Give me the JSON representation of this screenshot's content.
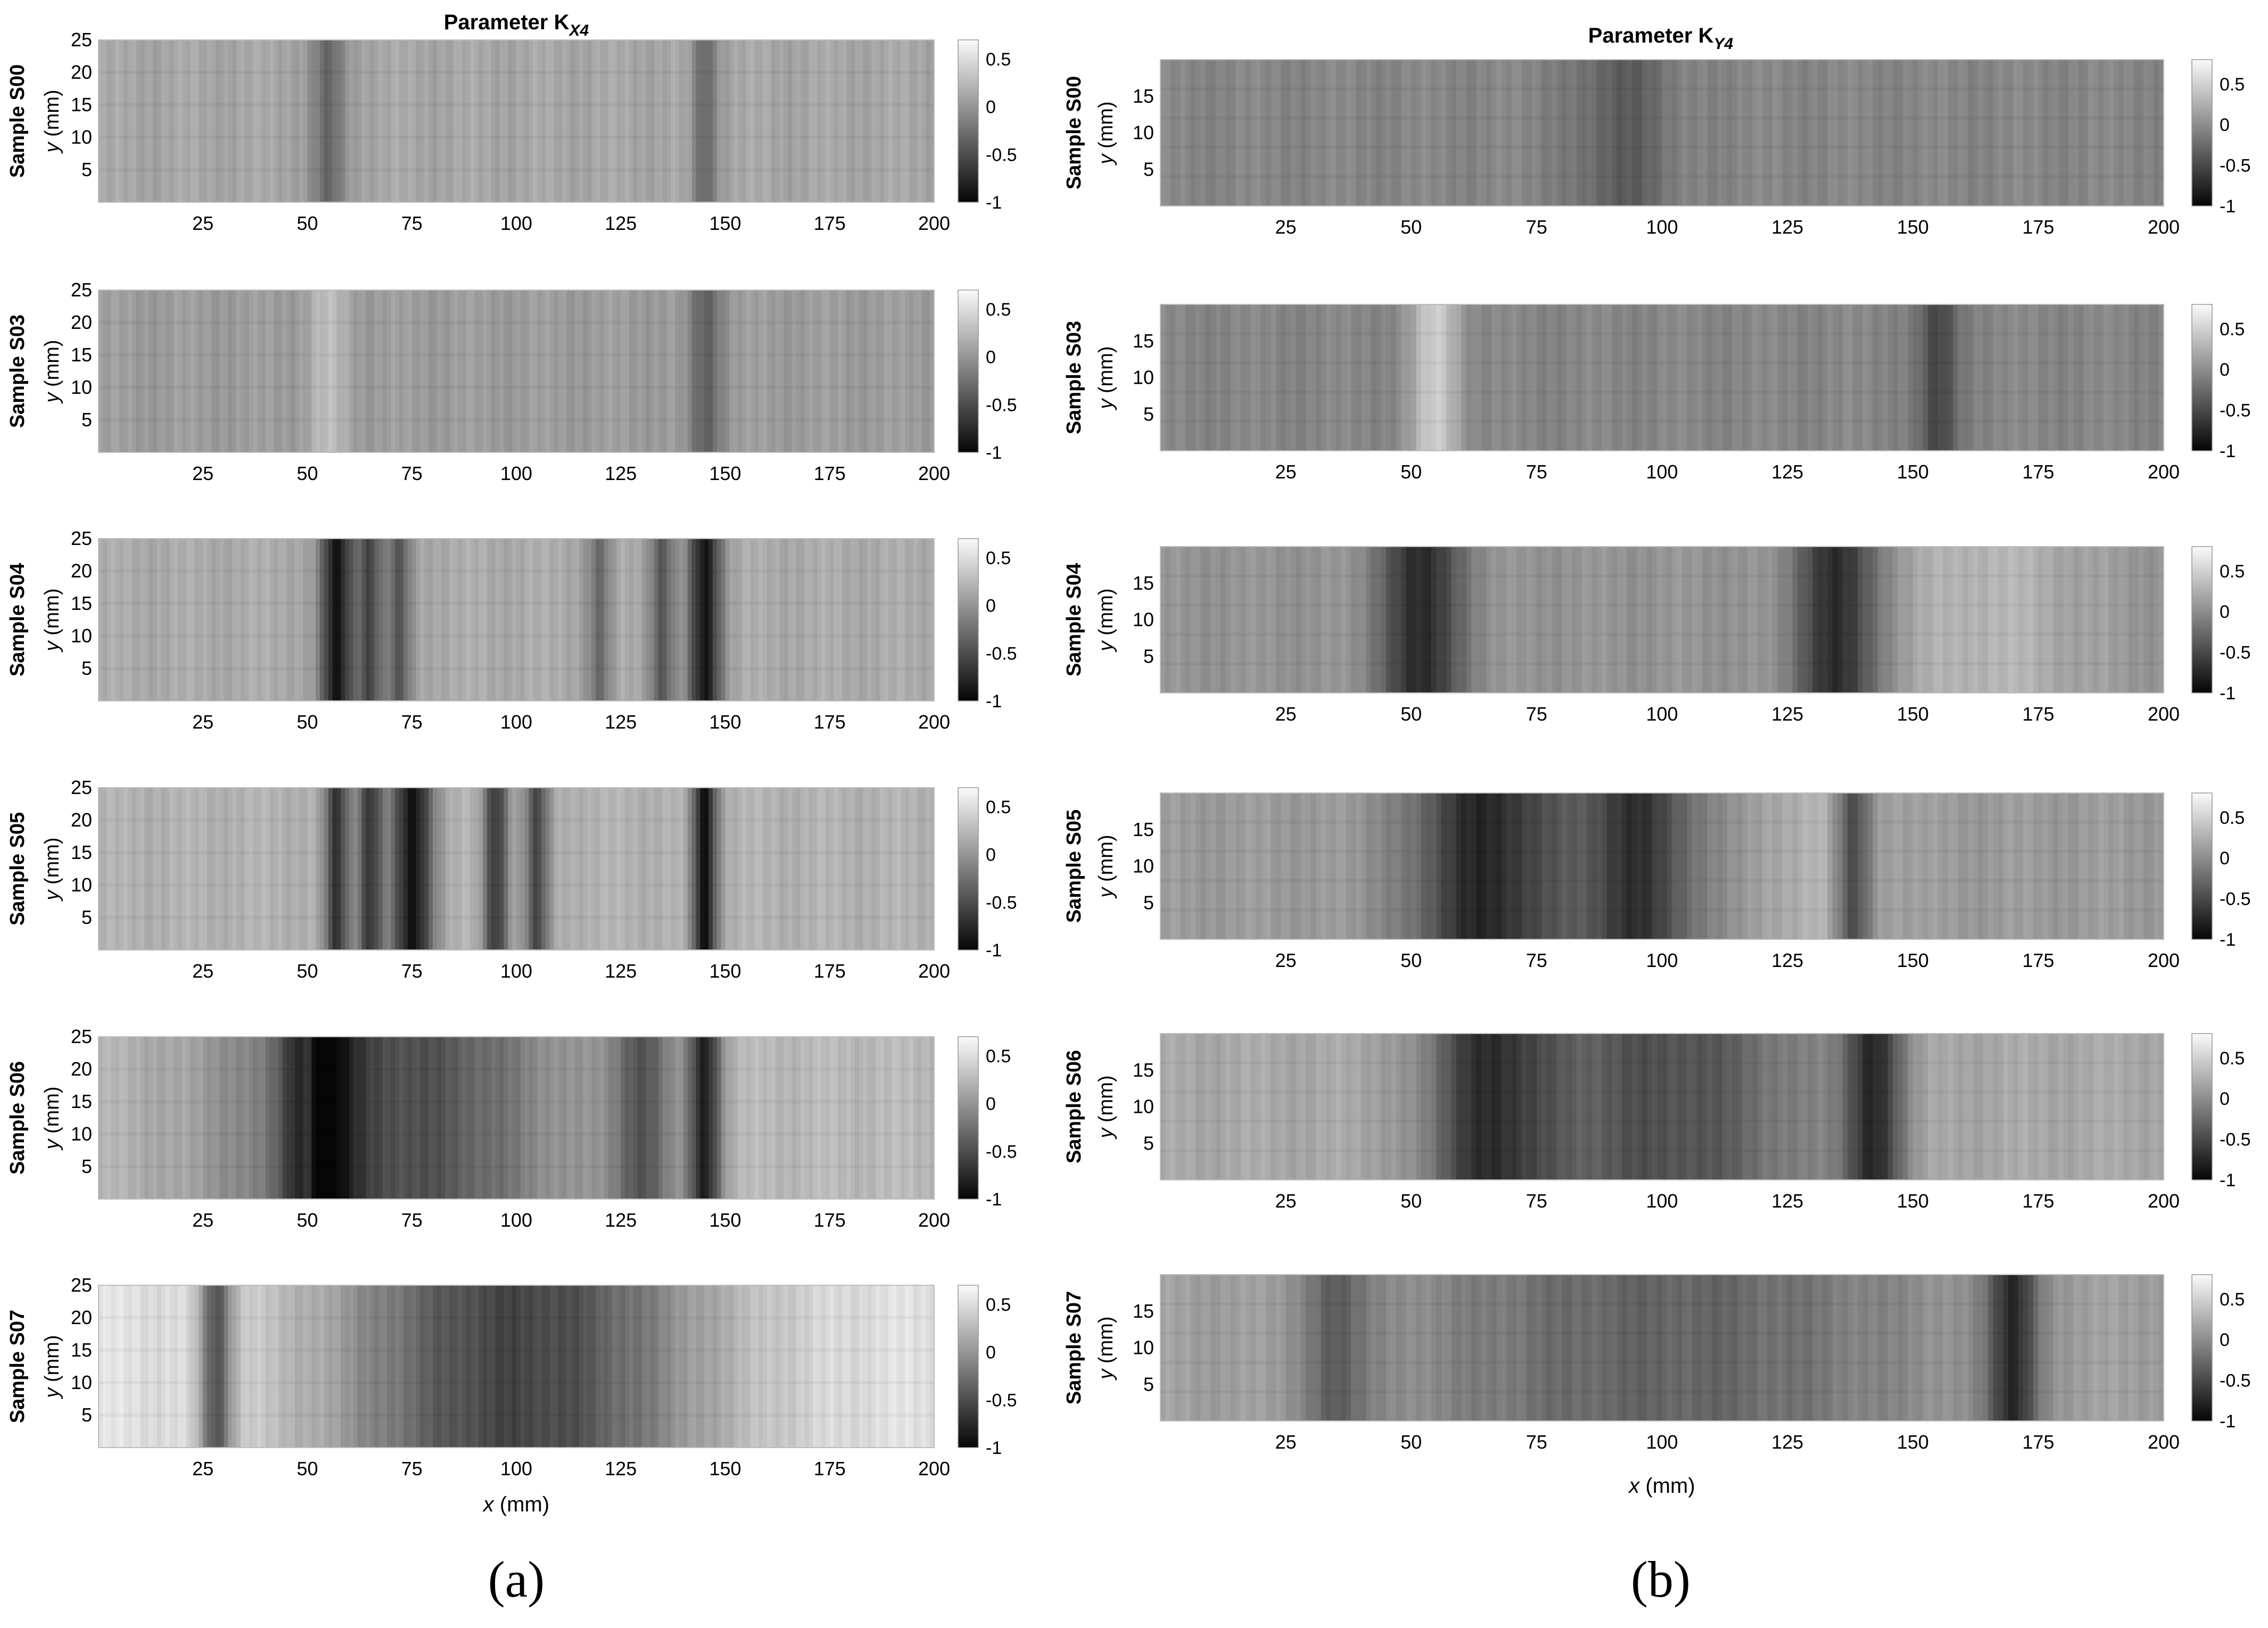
{
  "figure": {
    "subfigure_labels": [
      "(a)",
      "(b)"
    ]
  },
  "chart_data": [
    {
      "type": "heatmap",
      "panel": "a",
      "title": "Parameter K_X4",
      "title_main": "Parameter K",
      "title_sub": "X4",
      "xlabel": "x (mm)",
      "ylabel": "y (mm)",
      "xlim": [
        0,
        200
      ],
      "ylim": [
        0,
        25
      ],
      "x_ticks": [
        25,
        50,
        75,
        100,
        125,
        150,
        175,
        200
      ],
      "y_ticks": [
        5,
        10,
        15,
        20,
        25
      ],
      "colorbar": {
        "ticks": [
          0.5,
          0,
          -0.5,
          -1
        ],
        "tick_labels": [
          "0.5",
          "0",
          "-0.5",
          "-1"
        ],
        "range": [
          -1,
          0.7
        ],
        "colormap": "gray"
      },
      "samples": [
        {
          "name": "Sample S00",
          "base": 0.12,
          "features": [
            {
              "x": 55,
              "width": 4,
              "value": -0.35
            },
            {
              "x": 145,
              "width": 3,
              "value": -0.3
            }
          ]
        },
        {
          "name": "Sample S03",
          "base": 0.05,
          "features": [
            {
              "x": 55,
              "width": 5,
              "value": 0.25
            },
            {
              "x": 145,
              "width": 4,
              "value": -0.35
            }
          ]
        },
        {
          "name": "Sample S04",
          "base": 0.15,
          "features": [
            {
              "x": 57,
              "width": 4,
              "value": -0.9
            },
            {
              "x": 65,
              "width": 3,
              "value": -0.5
            },
            {
              "x": 72,
              "width": 3,
              "value": -0.45
            },
            {
              "x": 120,
              "width": 3,
              "value": -0.3
            },
            {
              "x": 135,
              "width": 3,
              "value": -0.4
            },
            {
              "x": 145,
              "width": 4,
              "value": -0.85
            }
          ]
        },
        {
          "name": "Sample S05",
          "base": 0.2,
          "features": [
            {
              "x": 57,
              "width": 3,
              "value": -0.7
            },
            {
              "x": 65,
              "width": 3,
              "value": -0.6
            },
            {
              "x": 75,
              "width": 5,
              "value": -0.9
            },
            {
              "x": 95,
              "width": 3,
              "value": -0.6
            },
            {
              "x": 105,
              "width": 3,
              "value": -0.55
            },
            {
              "x": 145,
              "width": 3,
              "value": -0.9
            }
          ]
        },
        {
          "name": "Sample S06",
          "base": 0.25,
          "features": [
            {
              "x": 50,
              "width": 2,
              "value": 0.6
            },
            {
              "x": 53,
              "width": 8,
              "value": -0.55
            },
            {
              "x": 70,
              "width": 40,
              "value": -0.5
            },
            {
              "x": 130,
              "width": 8,
              "value": -0.35
            },
            {
              "x": 145,
              "width": 4,
              "value": -0.75
            }
          ]
        },
        {
          "name": "Sample S07",
          "base": 0.55,
          "features": [
            {
              "x": 28,
              "width": 4,
              "value": -0.3
            },
            {
              "x": 100,
              "width": 48,
              "value": -0.55
            }
          ]
        }
      ]
    },
    {
      "type": "heatmap",
      "panel": "b",
      "title": "Parameter K_Y4",
      "title_main": "Parameter K",
      "title_sub": "Y4",
      "xlabel": "x (mm)",
      "ylabel": "y (mm)",
      "xlim": [
        0,
        200
      ],
      "ylim": [
        0,
        20
      ],
      "x_ticks": [
        25,
        50,
        75,
        100,
        125,
        150,
        175,
        200
      ],
      "y_ticks": [
        5,
        10,
        15
      ],
      "colorbar": {
        "ticks": [
          0.5,
          0,
          -0.5,
          -1
        ],
        "tick_labels": [
          "0.5",
          "0",
          "-0.5",
          "-1"
        ],
        "range": [
          -1,
          0.8
        ],
        "colormap": "gray"
      },
      "samples": [
        {
          "name": "Sample S00",
          "base": -0.05,
          "features": [
            {
              "x": 92,
              "width": 10,
              "value": -0.35
            }
          ]
        },
        {
          "name": "Sample S03",
          "base": -0.05,
          "features": [
            {
              "x": 55,
              "width": 5,
              "value": 0.45
            },
            {
              "x": 155,
              "width": 4,
              "value": -0.55
            }
          ]
        },
        {
          "name": "Sample S04",
          "base": 0.05,
          "features": [
            {
              "x": 52,
              "width": 8,
              "value": -0.75
            },
            {
              "x": 135,
              "width": 8,
              "value": -0.75
            },
            {
              "x": 165,
              "width": 20,
              "value": 0.3
            }
          ]
        },
        {
          "name": "Sample S05",
          "base": 0.1,
          "features": [
            {
              "x": 65,
              "width": 15,
              "value": -0.75
            },
            {
              "x": 95,
              "width": 12,
              "value": -0.65
            },
            {
              "x": 138,
              "width": 4,
              "value": -0.75
            },
            {
              "x": 135,
              "width": 10,
              "value": 0.4
            }
          ]
        },
        {
          "name": "Sample S06",
          "base": 0.2,
          "features": [
            {
              "x": 65,
              "width": 12,
              "value": -0.55
            },
            {
              "x": 100,
              "width": 30,
              "value": -0.45
            },
            {
              "x": 142,
              "width": 6,
              "value": -0.65
            }
          ]
        },
        {
          "name": "Sample S07",
          "base": 0.15,
          "features": [
            {
              "x": 35,
              "width": 6,
              "value": -0.3
            },
            {
              "x": 100,
              "width": 50,
              "value": -0.3
            },
            {
              "x": 170,
              "width": 5,
              "value": -0.7
            }
          ]
        }
      ]
    }
  ]
}
